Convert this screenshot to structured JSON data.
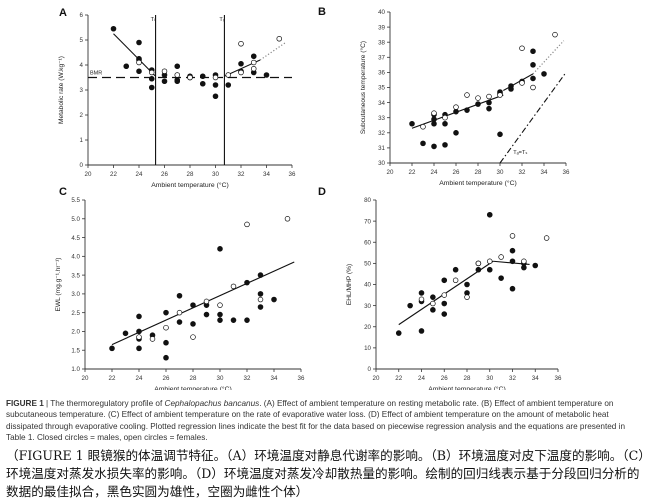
{
  "figure": {
    "label": "FIGURE 1",
    "caption_lead": "The thermoregulatory profile of ",
    "caption_species": "Cephalopachus bancanus",
    "caption_rest": ". (A) Effect of ambient temperature on resting metabolic rate. (B) Effect of ambient temperature on subcutaneous temperature. (C) Effect of ambient temperature on the rate of evaporative water loss. (D) Effect of ambient temperature on the amount of metabolic heat dissipated through evaporative cooling. Plotted regression lines indicate the best fit for the data based on piecewise regression analysis and the equations are presented in Table 1. Closed circles = males, open circles = females.",
    "caption_cn": "（FIGURE 1 眼镜猴的体温调节特征。（A）环境温度对静息代谢率的影响。（B）环境温度对皮下温度的影响。（C）环境温度对蒸发水损失率的影响。（D）环境温度对蒸发冷却散热量的影响。绘制的回归线表示基于分段回归分析的数据的最佳拟合，黑色实圆为雄性，空圈为雌性个体）"
  },
  "colors": {
    "axis": "#333333",
    "closed": "#111111",
    "open_fill": "#ffffff",
    "line": "#111111",
    "dotted": "#888888"
  },
  "chart_data": [
    {
      "panel": "A",
      "type": "scatter",
      "xlabel": "Ambient temperature (°C)",
      "ylabel": "Metabolic rate (W.kg⁻¹)",
      "xlim": [
        20,
        36
      ],
      "ylim": [
        0,
        6
      ],
      "xticks": [
        20,
        22,
        24,
        26,
        28,
        30,
        32,
        34,
        36
      ],
      "yticks": [
        0,
        1,
        2,
        3,
        4,
        5,
        6
      ],
      "ytick_labels": [
        "0",
        "1",
        "2",
        "3",
        "4",
        "5",
        "6"
      ],
      "closed": [
        [
          22,
          5.45
        ],
        [
          23,
          3.95
        ],
        [
          24,
          4.9
        ],
        [
          24,
          4.25
        ],
        [
          24,
          4.2
        ],
        [
          24,
          3.75
        ],
        [
          25,
          3.8
        ],
        [
          25,
          3.1
        ],
        [
          25,
          3.45
        ],
        [
          26,
          3.6
        ],
        [
          26,
          3.35
        ],
        [
          27,
          3.4
        ],
        [
          27,
          3.95
        ],
        [
          27,
          3.35
        ],
        [
          28,
          3.5
        ],
        [
          28,
          3.55
        ],
        [
          29,
          3.55
        ],
        [
          29,
          3.25
        ],
        [
          30,
          2.75
        ],
        [
          30,
          3.2
        ],
        [
          30,
          3.6
        ],
        [
          31,
          3.2
        ],
        [
          32,
          4.05
        ],
        [
          32,
          3.75
        ],
        [
          33,
          3.7
        ],
        [
          33,
          4.35
        ],
        [
          34,
          3.6
        ]
      ],
      "open": [
        [
          24,
          4.1
        ],
        [
          25,
          3.7
        ],
        [
          26,
          3.75
        ],
        [
          27,
          3.6
        ],
        [
          28,
          3.5
        ],
        [
          30,
          3.5
        ],
        [
          31,
          3.6
        ],
        [
          32,
          4.85
        ],
        [
          32,
          3.7
        ],
        [
          33,
          4.1
        ],
        [
          33,
          3.85
        ],
        [
          35,
          5.05
        ]
      ],
      "segments": [
        {
          "from": [
            22,
            5.25
          ],
          "to": [
            25.3,
            3.55
          ],
          "style": "solid"
        },
        {
          "from": [
            30.7,
            3.55
          ],
          "to": [
            33.5,
            4.2
          ],
          "style": "solid"
        },
        {
          "from": [
            33.5,
            4.2
          ],
          "to": [
            35.5,
            4.9
          ],
          "style": "dotted"
        }
      ],
      "bmr": {
        "value": 3.5,
        "label": "BMR"
      },
      "vlines": [
        {
          "x": 25.3,
          "label": "Tₗ"
        },
        {
          "x": 30.7,
          "label": "Tᵤ"
        }
      ]
    },
    {
      "panel": "B",
      "type": "scatter",
      "xlabel": "Ambient temperature (°C)",
      "ylabel": "Subcutaneous temperature (°C)",
      "xlim": [
        20,
        36
      ],
      "ylim": [
        30,
        40
      ],
      "xticks": [
        20,
        22,
        24,
        26,
        28,
        30,
        32,
        34,
        36
      ],
      "yticks": [
        30,
        31,
        32,
        33,
        34,
        35,
        36,
        37,
        38,
        39,
        40
      ],
      "ytick_labels": [
        "30",
        "31",
        "32",
        "33",
        "34",
        "35",
        "36",
        "37",
        "38",
        "39",
        "40"
      ],
      "closed": [
        [
          22,
          32.6
        ],
        [
          23,
          31.3
        ],
        [
          24,
          31.1
        ],
        [
          24,
          32.6
        ],
        [
          24,
          33.2
        ],
        [
          24,
          32.9
        ],
        [
          25,
          31.2
        ],
        [
          25,
          33.2
        ],
        [
          25,
          32.6
        ],
        [
          26,
          32.0
        ],
        [
          26,
          33.4
        ],
        [
          27,
          33.5
        ],
        [
          28,
          33.9
        ],
        [
          29,
          34.0
        ],
        [
          29,
          33.6
        ],
        [
          30,
          31.9
        ],
        [
          30,
          34.6
        ],
        [
          30,
          34.7
        ],
        [
          31,
          35.1
        ],
        [
          31,
          34.9
        ],
        [
          32,
          35.4
        ],
        [
          33,
          37.4
        ],
        [
          33,
          36.5
        ],
        [
          33,
          35.6
        ],
        [
          34,
          35.9
        ]
      ],
      "open": [
        [
          23,
          32.4
        ],
        [
          24,
          33.3
        ],
        [
          25,
          33.0
        ],
        [
          26,
          33.7
        ],
        [
          27,
          34.5
        ],
        [
          28,
          34.3
        ],
        [
          29,
          34.4
        ],
        [
          30,
          34.5
        ],
        [
          32,
          37.6
        ],
        [
          32,
          35.3
        ],
        [
          33,
          35.0
        ],
        [
          35,
          38.5
        ]
      ],
      "segments": [
        {
          "from": [
            22,
            32.3
          ],
          "to": [
            30.3,
            34.5
          ],
          "style": "solid"
        },
        {
          "from": [
            30.3,
            34.8
          ],
          "to": [
            33,
            35.9
          ],
          "style": "solid"
        },
        {
          "from": [
            33,
            35.9
          ],
          "to": [
            35.8,
            38.1
          ],
          "style": "dotted"
        },
        {
          "from": [
            30,
            30
          ],
          "to": [
            36,
            36
          ],
          "style": "dashdot"
        }
      ],
      "line_label": {
        "text": "Tₐ=Tₛ",
        "at": [
          31.2,
          30.6
        ]
      }
    },
    {
      "panel": "C",
      "type": "scatter",
      "xlabel": "Ambient temperature (°C)",
      "ylabel": "EWL (mg.g⁻¹.hr⁻¹)",
      "xlim": [
        20,
        36
      ],
      "ylim": [
        1.0,
        5.5
      ],
      "xticks": [
        20,
        22,
        24,
        26,
        28,
        30,
        32,
        34,
        36
      ],
      "yticks": [
        1.0,
        1.5,
        2.0,
        2.5,
        3.0,
        3.5,
        4.0,
        4.5,
        5.0,
        5.5
      ],
      "ytick_labels": [
        "1.0",
        "1.5",
        "2.0",
        "2.5",
        "3.0",
        "3.5",
        "4.0",
        "4.5",
        "5.0",
        "5.5"
      ],
      "closed": [
        [
          22,
          1.55
        ],
        [
          23,
          1.95
        ],
        [
          24,
          1.8
        ],
        [
          24,
          2.4
        ],
        [
          24,
          1.55
        ],
        [
          24,
          2.0
        ],
        [
          25,
          1.9
        ],
        [
          26,
          1.7
        ],
        [
          26,
          1.3
        ],
        [
          26,
          2.5
        ],
        [
          27,
          2.95
        ],
        [
          27,
          2.25
        ],
        [
          28,
          2.7
        ],
        [
          28,
          2.2
        ],
        [
          29,
          2.45
        ],
        [
          29,
          2.7
        ],
        [
          30,
          2.45
        ],
        [
          30,
          2.3
        ],
        [
          30,
          4.2
        ],
        [
          31,
          2.3
        ],
        [
          32,
          3.3
        ],
        [
          32,
          2.3
        ],
        [
          33,
          3.5
        ],
        [
          33,
          3.0
        ],
        [
          33,
          2.65
        ],
        [
          34,
          2.85
        ]
      ],
      "open": [
        [
          24,
          1.85
        ],
        [
          25,
          1.8
        ],
        [
          26,
          2.1
        ],
        [
          27,
          2.5
        ],
        [
          28,
          1.85
        ],
        [
          29,
          2.8
        ],
        [
          30,
          2.7
        ],
        [
          31,
          3.2
        ],
        [
          32,
          4.85
        ],
        [
          33,
          2.85
        ],
        [
          35,
          5.0
        ]
      ],
      "segments": [
        {
          "from": [
            22,
            1.65
          ],
          "to": [
            35.5,
            3.85
          ],
          "style": "solid"
        }
      ]
    },
    {
      "panel": "D",
      "type": "scatter",
      "xlabel": "Ambient temperature (°C)",
      "ylabel": "EHL/MHP (%)",
      "xlim": [
        20,
        36
      ],
      "ylim": [
        0,
        80
      ],
      "xticks": [
        20,
        22,
        24,
        26,
        28,
        30,
        32,
        34,
        36
      ],
      "yticks": [
        0,
        10,
        20,
        30,
        40,
        50,
        60,
        70,
        80
      ],
      "ytick_labels": [
        "0",
        "10",
        "20",
        "30",
        "40",
        "50",
        "60",
        "70",
        "80"
      ],
      "closed": [
        [
          22,
          17
        ],
        [
          23,
          30
        ],
        [
          24,
          36
        ],
        [
          24,
          32
        ],
        [
          24,
          18
        ],
        [
          25,
          34
        ],
        [
          25,
          28
        ],
        [
          26,
          26
        ],
        [
          26,
          31
        ],
        [
          26,
          42
        ],
        [
          27,
          47
        ],
        [
          28,
          36
        ],
        [
          28,
          40
        ],
        [
          29,
          47
        ],
        [
          29,
          50
        ],
        [
          30,
          73
        ],
        [
          30,
          47
        ],
        [
          31,
          43
        ],
        [
          32,
          38
        ],
        [
          32,
          56
        ],
        [
          32,
          51
        ],
        [
          33,
          48
        ],
        [
          33,
          50
        ],
        [
          34,
          49
        ]
      ],
      "open": [
        [
          24,
          33
        ],
        [
          25,
          31
        ],
        [
          26,
          35
        ],
        [
          27,
          42
        ],
        [
          28,
          34
        ],
        [
          29,
          50
        ],
        [
          30,
          51
        ],
        [
          31,
          53
        ],
        [
          32,
          63
        ],
        [
          33,
          51
        ],
        [
          35,
          62
        ]
      ],
      "segments": [
        {
          "from": [
            22,
            21
          ],
          "to": [
            30.3,
            51
          ],
          "style": "solid"
        },
        {
          "from": [
            30.3,
            51
          ],
          "to": [
            33.5,
            49.5
          ],
          "style": "solid"
        }
      ]
    }
  ]
}
